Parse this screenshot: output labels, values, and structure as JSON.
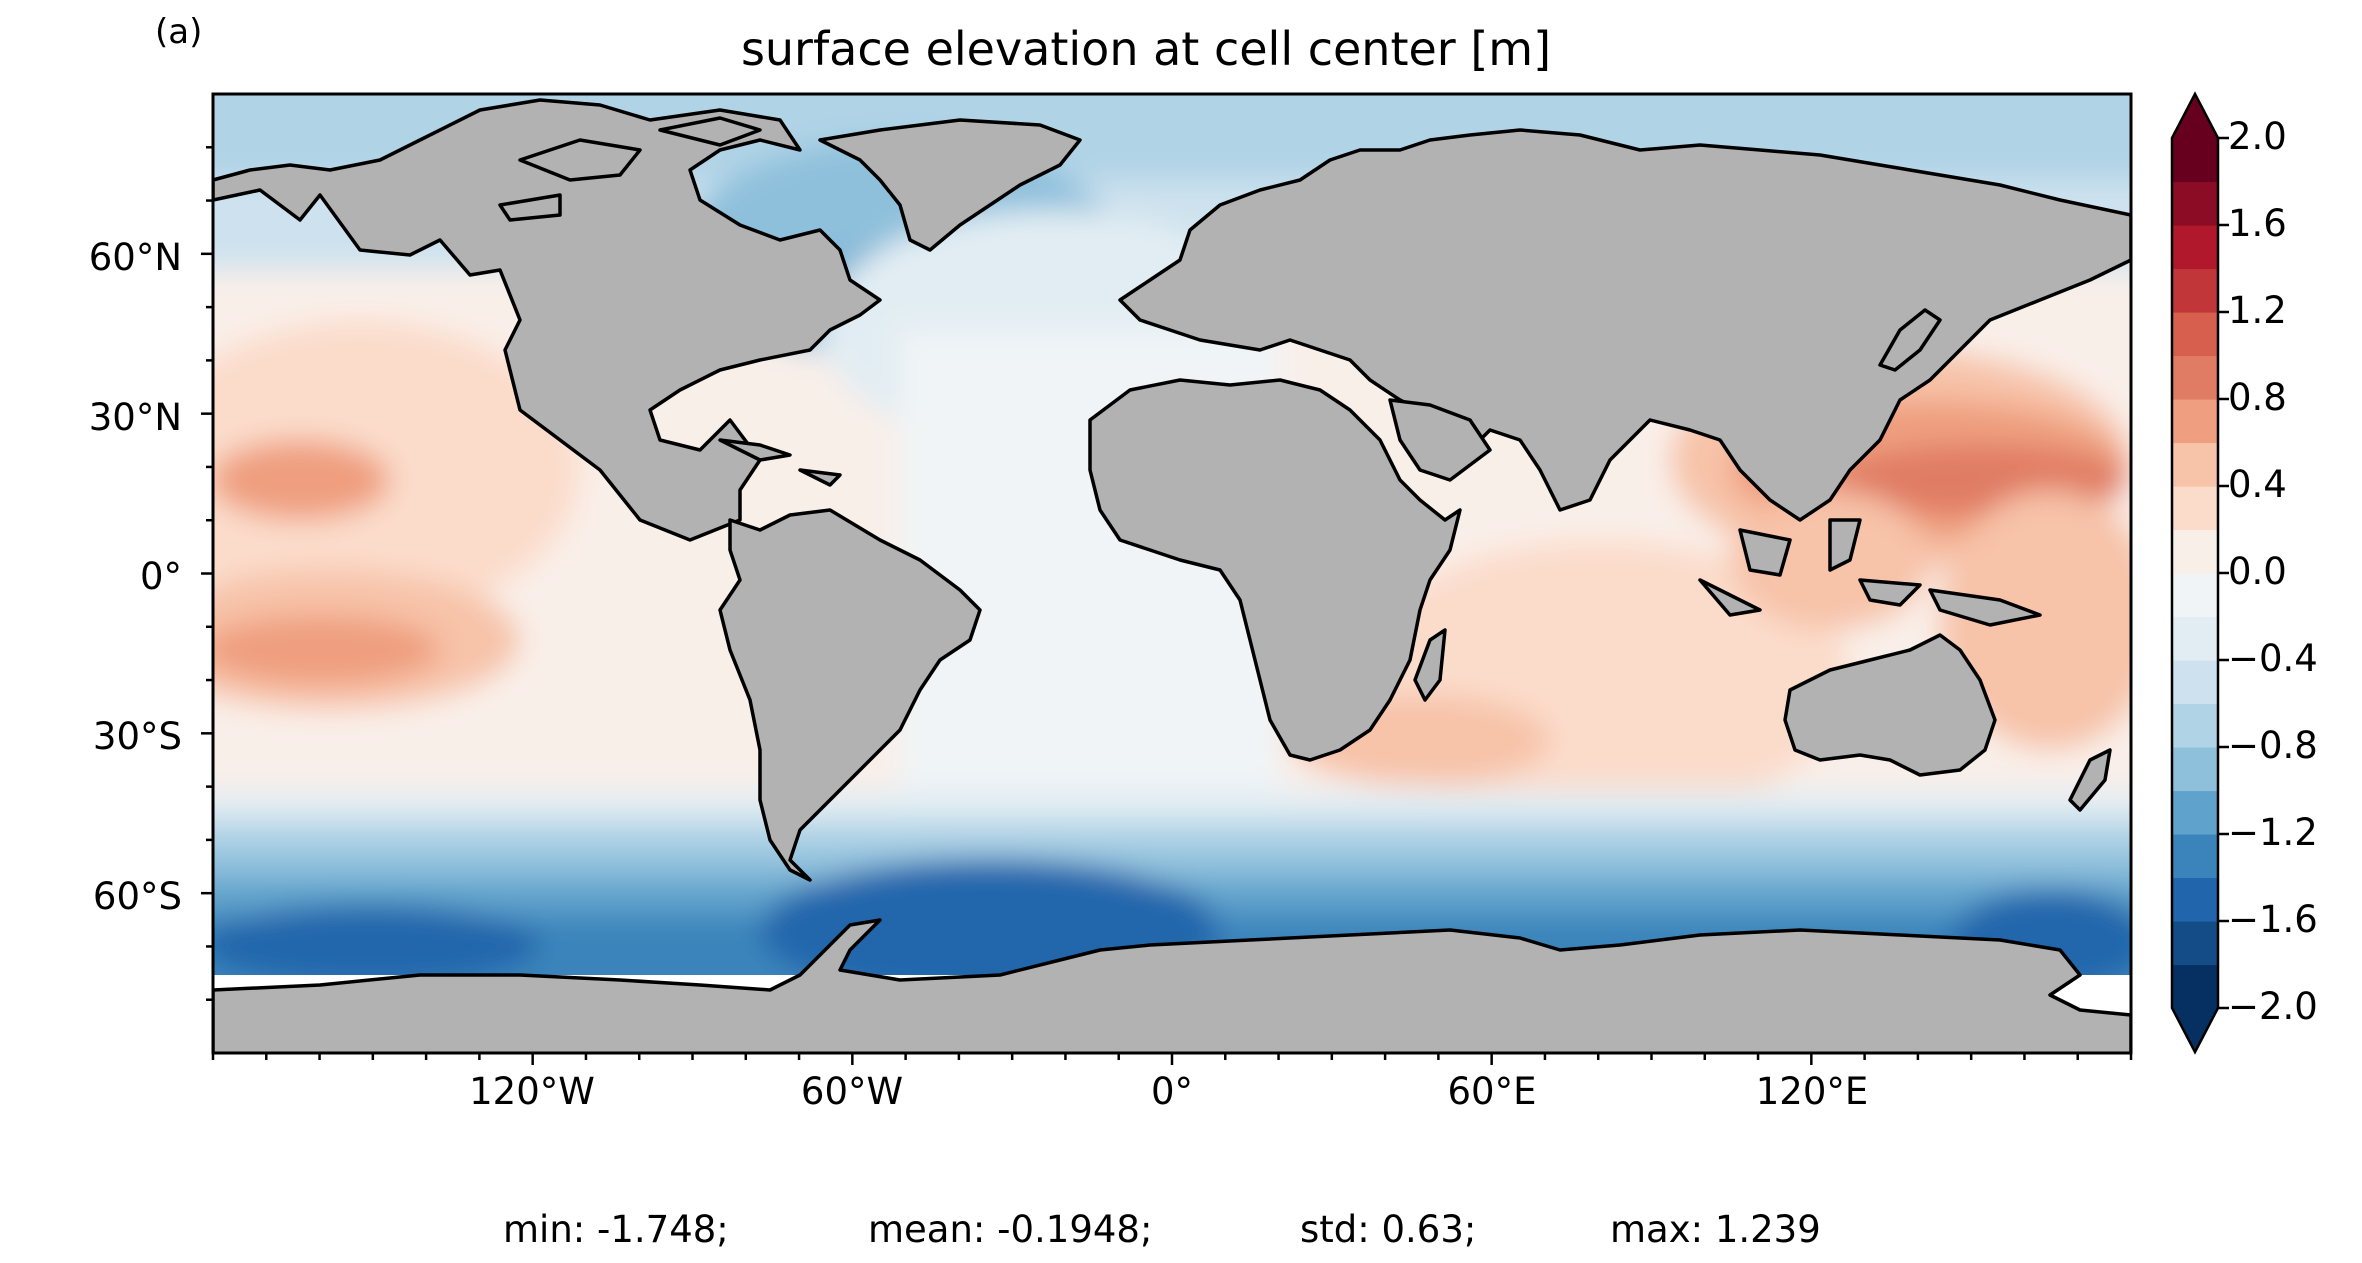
{
  "panel_label": "(a)",
  "title": "surface elevation at cell center [m]",
  "map": {
    "projection": "equirectangular",
    "lon_range": [
      -180,
      180
    ],
    "lat_range": [
      -90,
      90
    ],
    "land_color": "#b2b2b2",
    "coastline_color": "#000000",
    "colormap": "RdBu_r",
    "y_ticks": [
      {
        "lat": 60,
        "label": "60°N"
      },
      {
        "lat": 30,
        "label": "30°N"
      },
      {
        "lat": 0,
        "label": "0°"
      },
      {
        "lat": -30,
        "label": "30°S"
      },
      {
        "lat": -60,
        "label": "60°S"
      }
    ],
    "x_ticks": [
      {
        "lon": -120,
        "label": "120°W"
      },
      {
        "lon": -60,
        "label": "60°W"
      },
      {
        "lon": 0,
        "label": "0°"
      },
      {
        "lon": 60,
        "label": "60°E"
      },
      {
        "lon": 120,
        "label": "120°E"
      }
    ]
  },
  "colorbar": {
    "vmin": -2.0,
    "vmax": 2.0,
    "step": 0.2,
    "extend": "both",
    "tick_labels": [
      {
        "value": 2.0,
        "label": "2.0"
      },
      {
        "value": 1.6,
        "label": "1.6"
      },
      {
        "value": 1.2,
        "label": "1.2"
      },
      {
        "value": 0.8,
        "label": "0.8"
      },
      {
        "value": 0.4,
        "label": "0.4"
      },
      {
        "value": 0.0,
        "label": "0.0"
      },
      {
        "value": -0.4,
        "label": "−0.4"
      },
      {
        "value": -0.8,
        "label": "−0.8"
      },
      {
        "value": -1.2,
        "label": "−1.2"
      },
      {
        "value": -1.6,
        "label": "−1.6"
      },
      {
        "value": -2.0,
        "label": "−2.0"
      }
    ],
    "colors": [
      "#053061",
      "#134c87",
      "#2166ac",
      "#3a84bb",
      "#5fa2cb",
      "#8ec0dc",
      "#b0d3e6",
      "#cde2ee",
      "#e2edf3",
      "#f0f4f6",
      "#f9efe9",
      "#fbdccb",
      "#f7c3a9",
      "#ef9f7f",
      "#e07c63",
      "#d6604d",
      "#c13639",
      "#b2182b",
      "#8d0c25",
      "#67001f"
    ],
    "under_color": "#053061",
    "over_color": "#67001f"
  },
  "stats": {
    "min": "min: -1.748;",
    "mean": "mean: -0.1948;",
    "std": "std: 0.63;",
    "max": "max: 1.239"
  }
}
